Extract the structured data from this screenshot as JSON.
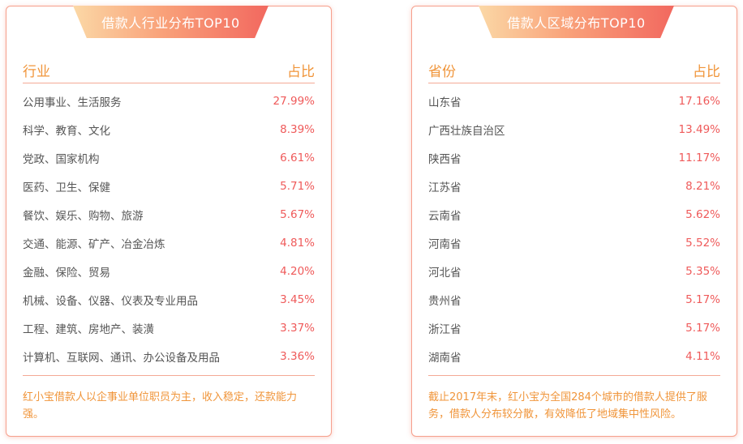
{
  "industry": {
    "title": "借款人行业分布TOP10",
    "col_name": "行业",
    "col_value": "占比",
    "rows": [
      {
        "name": "公用事业、生活服务",
        "pct": "27.99%"
      },
      {
        "name": "科学、教育、文化",
        "pct": "8.39%"
      },
      {
        "name": "党政、国家机构",
        "pct": "6.61%"
      },
      {
        "name": "医药、卫生、保健",
        "pct": "5.71%"
      },
      {
        "name": "餐饮、娱乐、购物、旅游",
        "pct": "5.67%"
      },
      {
        "name": "交通、能源、矿产、冶金冶炼",
        "pct": "4.81%"
      },
      {
        "name": "金融、保险、贸易",
        "pct": "4.20%"
      },
      {
        "name": "机械、设备、仪器、仪表及专业用品",
        "pct": "3.45%"
      },
      {
        "name": "工程、建筑、房地产、装潢",
        "pct": "3.37%"
      },
      {
        "name": "计算机、互联网、通讯、办公设备及用品",
        "pct": "3.36%"
      }
    ],
    "note": "红小宝借款人以企事业单位职员为主，收入稳定，还款能力强。"
  },
  "region": {
    "title": "借款人区域分布TOP10",
    "col_name": "省份",
    "col_value": "占比",
    "rows": [
      {
        "name": "山东省",
        "pct": "17.16%"
      },
      {
        "name": "广西壮族自治区",
        "pct": "13.49%"
      },
      {
        "name": "陕西省",
        "pct": "11.17%"
      },
      {
        "name": "江苏省",
        "pct": "8.21%"
      },
      {
        "name": "云南省",
        "pct": "5.62%"
      },
      {
        "name": "河南省",
        "pct": "5.52%"
      },
      {
        "name": "河北省",
        "pct": "5.35%"
      },
      {
        "name": "贵州省",
        "pct": "5.17%"
      },
      {
        "name": "浙江省",
        "pct": "5.17%"
      },
      {
        "name": "湖南省",
        "pct": "4.11%"
      }
    ],
    "note": "截止2017年末，红小宝为全国284个城市的借款人提供了服务，借款人分布较分散，有效降低了地域集中性风险。"
  },
  "colors": {
    "accent_orange": "#f0953a",
    "value_red": "#ef5a5a",
    "border": "#f6a08c"
  }
}
